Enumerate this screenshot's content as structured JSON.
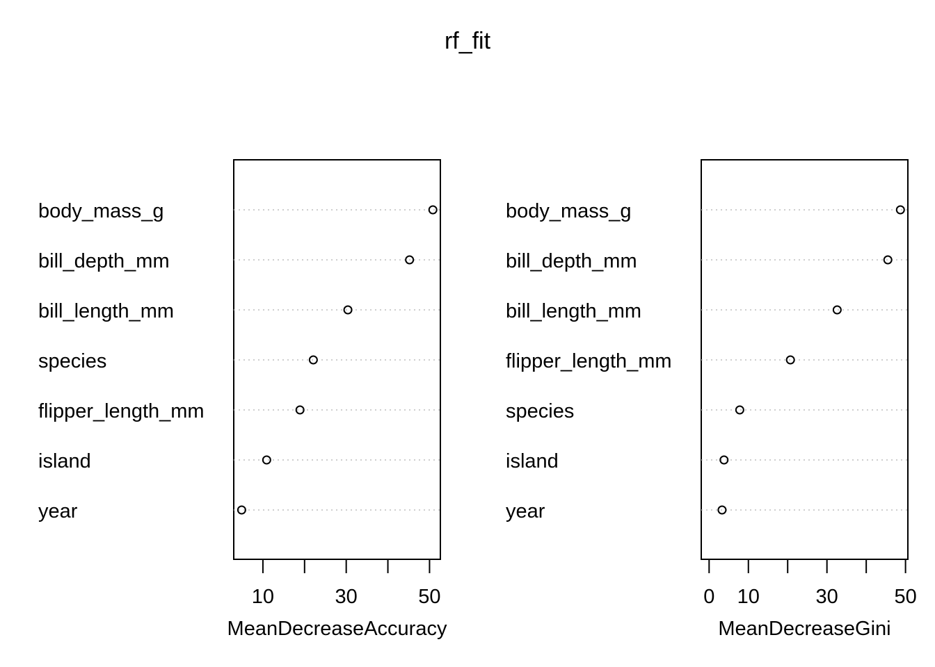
{
  "title": "rf_fit",
  "chart_data": [
    {
      "type": "scatter",
      "variant": "dotchart",
      "xlabel": "MeanDecreaseAccuracy",
      "xlim": [
        3.0,
        52.6
      ],
      "ticks": [
        0,
        10,
        20,
        30,
        40,
        50
      ],
      "tick_labels": [
        "",
        "10",
        "",
        "30",
        "",
        "50"
      ],
      "categories": [
        "body_mass_g",
        "bill_depth_mm",
        "bill_length_mm",
        "species",
        "flipper_length_mm",
        "island",
        "year"
      ],
      "values": [
        50.8,
        45.2,
        30.4,
        22.1,
        18.9,
        10.9,
        4.9
      ],
      "grid": "dotted horizontal"
    },
    {
      "type": "scatter",
      "variant": "dotchart",
      "xlabel": "MeanDecreaseGini",
      "xlim": [
        -2.0,
        50.6
      ],
      "ticks": [
        0,
        10,
        20,
        30,
        40,
        50
      ],
      "tick_labels": [
        "0",
        "10",
        "",
        "30",
        "",
        "50"
      ],
      "categories": [
        "body_mass_g",
        "bill_depth_mm",
        "bill_length_mm",
        "flipper_length_mm",
        "species",
        "island",
        "year"
      ],
      "values": [
        48.7,
        45.5,
        32.6,
        20.7,
        7.8,
        3.8,
        3.3
      ],
      "grid": "dotted horizontal"
    }
  ]
}
